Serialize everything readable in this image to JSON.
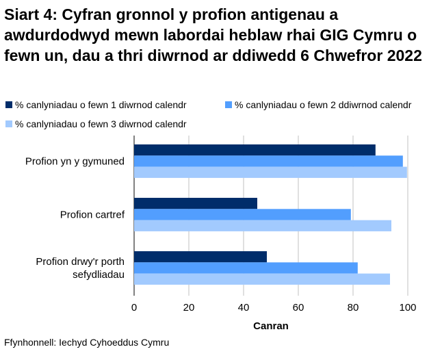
{
  "chart_data": {
    "type": "bar",
    "orientation": "horizontal",
    "title": "Siart 4: Cyfran gronnol y profion antigenau a awdurdodwyd mewn labordai heblaw rhai GIG Cymru o fewn un, dau a thri diwrnod ar ddiwedd 6 Chwefror 2022",
    "categories": [
      "Profion yn y gymuned",
      "Profion cartref",
      "Profion drwy'r porth sefydliadau"
    ],
    "series": [
      {
        "name": "% canlyniadau o fewn 1 diwrnod calendr",
        "color": "#002d6a",
        "values": [
          88.2,
          45.0,
          48.5
        ]
      },
      {
        "name": "% canlyniadau o fewn 2 ddiwrnod calendr",
        "color": "#529efe",
        "values": [
          98.2,
          79.2,
          81.7
        ]
      },
      {
        "name": "% canlyniadau o fewn 3 diwrnod calendr",
        "color": "#a2cafe",
        "values": [
          99.7,
          94.0,
          93.5
        ]
      }
    ],
    "xlabel": "Canran",
    "ylabel": "",
    "xlim": [
      0,
      100
    ],
    "xticks": [
      "0",
      "20",
      "40",
      "60",
      "80",
      "100"
    ],
    "grid": "vertical",
    "legend": "top"
  },
  "source": "Ffynhonnell: Iechyd Cyhoeddus Cymru"
}
